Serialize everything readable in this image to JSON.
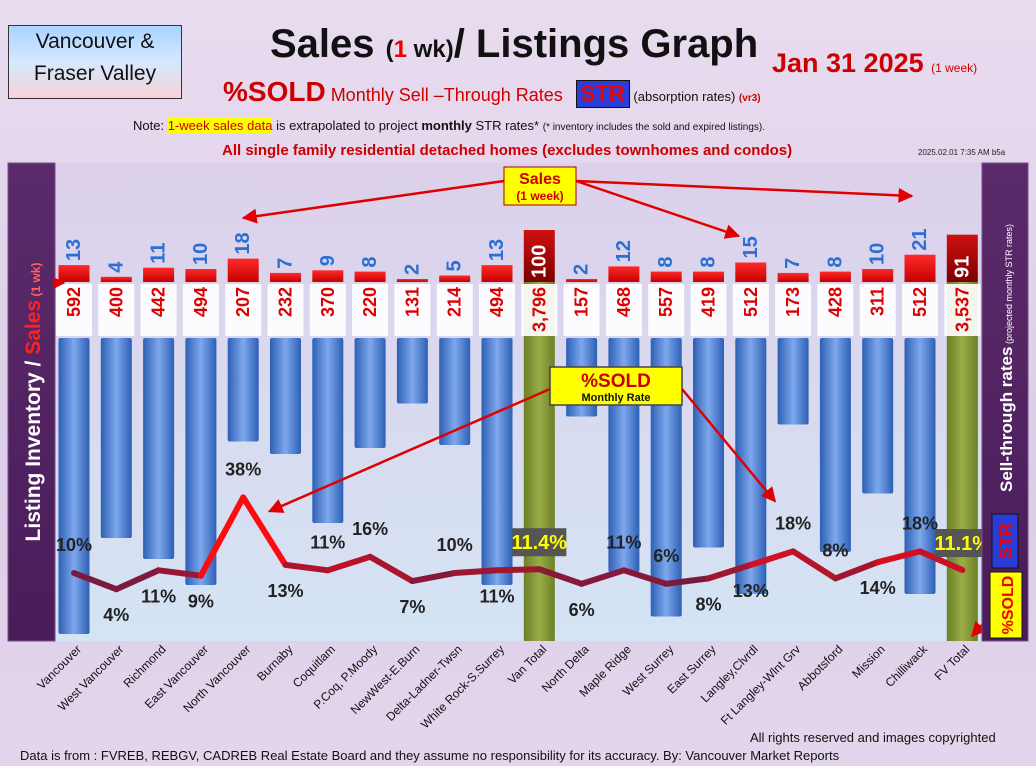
{
  "header": {
    "region_line1": "Vancouver &",
    "region_line2": "Fraser Valley",
    "title_main": "Sales ",
    "title_paren_open": "(",
    "title_one": "1",
    "title_wk": " wk)",
    "title_rest": "/ Listings Graph",
    "date": "Jan 31  2025",
    "date_note": "(1 week)",
    "sub_sold": "%SOLD",
    "sub_monthly": " Monthly Sell –Through Rates ",
    "sub_str": "STR",
    "sub_abs": " (absorption rates) ",
    "sub_vr": "(vr3)",
    "note_prefix": "Note: ",
    "note_highlight": "1-week sales data",
    "note_middle": " is extrapolated to project ",
    "note_bold": "monthly",
    "note_end": " STR rates* ",
    "note_small": "(* inventory includes the sold and expired listings).",
    "headline": "All single family residential detached homes (excludes townhomes and condos)",
    "stamp": "2025.02.01 7:35 AM b5a"
  },
  "side_labels": {
    "left_inventory": "Listing Inventory / ",
    "left_sales": "Sales",
    "left_wk": " (1 wk)",
    "right_main": "Sell-through rates",
    "right_small": " (projected monthly STR rates)",
    "right_str": "STR",
    "right_sold": "%SOLD"
  },
  "callouts": {
    "sales_title": "Sales",
    "sales_sub": "(1 week)",
    "sold_title": "%SOLD",
    "sold_sub": "Monthly Rate"
  },
  "footer": {
    "rights": "All rights reserved and  images copyrighted",
    "source": "Data is from : FVREB, REBGV, CADREB Real Estate Board and they assume no responsibility for its accuracy. By: Vancouver Market Reports"
  },
  "colors": {
    "sales": "#ee0000",
    "inventory": "#4a7fd4",
    "total": "#7f9430",
    "line_low": "#5a1e4a",
    "line_high": "#ff1010",
    "sales_num": "#2d6ed4",
    "inv_num": "#dd0000"
  },
  "chart_data": {
    "type": "bar",
    "categories": [
      "Vancouver",
      "West Vancouver",
      "Richmond",
      "East Vancouver",
      "North Vancouver",
      "Burnaby",
      "Coquitlam",
      "P.Coq, P.Moody",
      "NewWest-E.Burn",
      "Delta-Ladner-Twsn",
      "White Rock-S.Surrey",
      "Van Total",
      "North Delta",
      "Maple Ridge",
      "West Surrey",
      "East Surrey",
      "Langley,Clvrdl",
      "Ft Langley-Wlnt Grv",
      "Abbotsford",
      "Mission",
      "Chilliwack",
      "FV Total"
    ],
    "series": [
      {
        "name": "Sales",
        "values": [
          13,
          4,
          11,
          10,
          18,
          7,
          9,
          8,
          2,
          5,
          13,
          100,
          2,
          12,
          8,
          8,
          15,
          7,
          8,
          10,
          21,
          91
        ]
      },
      {
        "name": "Listing Inventory",
        "values": [
          592,
          400,
          442,
          494,
          207,
          232,
          370,
          220,
          131,
          214,
          494,
          3796,
          157,
          468,
          557,
          419,
          512,
          173,
          428,
          311,
          512,
          3537
        ],
        "labels": [
          "592",
          "400",
          "442",
          "494",
          "207",
          "232",
          "370",
          "220",
          "131",
          "214",
          "494",
          "3,796",
          "157",
          "468",
          "557",
          "419",
          "512",
          "173",
          "428",
          "311",
          "512",
          "3,537"
        ]
      },
      {
        "name": "%SOLD",
        "values": [
          10,
          4,
          11,
          9,
          38,
          13,
          11,
          16,
          7,
          10,
          11,
          11.4,
          6,
          11,
          6,
          8,
          13,
          18,
          8,
          14,
          18,
          11.1
        ],
        "labels": [
          "10%",
          "4%",
          "11%",
          "9%",
          "38%",
          "13%",
          "11%",
          "16%",
          "7%",
          "10%",
          "11%",
          "11.4%",
          "6%",
          "11%",
          "6%",
          "8%",
          "13%",
          "18%",
          "8%",
          "14%",
          "18%",
          "11.1%"
        ]
      }
    ],
    "total_categories": [
      "Van Total",
      "FV Total"
    ]
  }
}
